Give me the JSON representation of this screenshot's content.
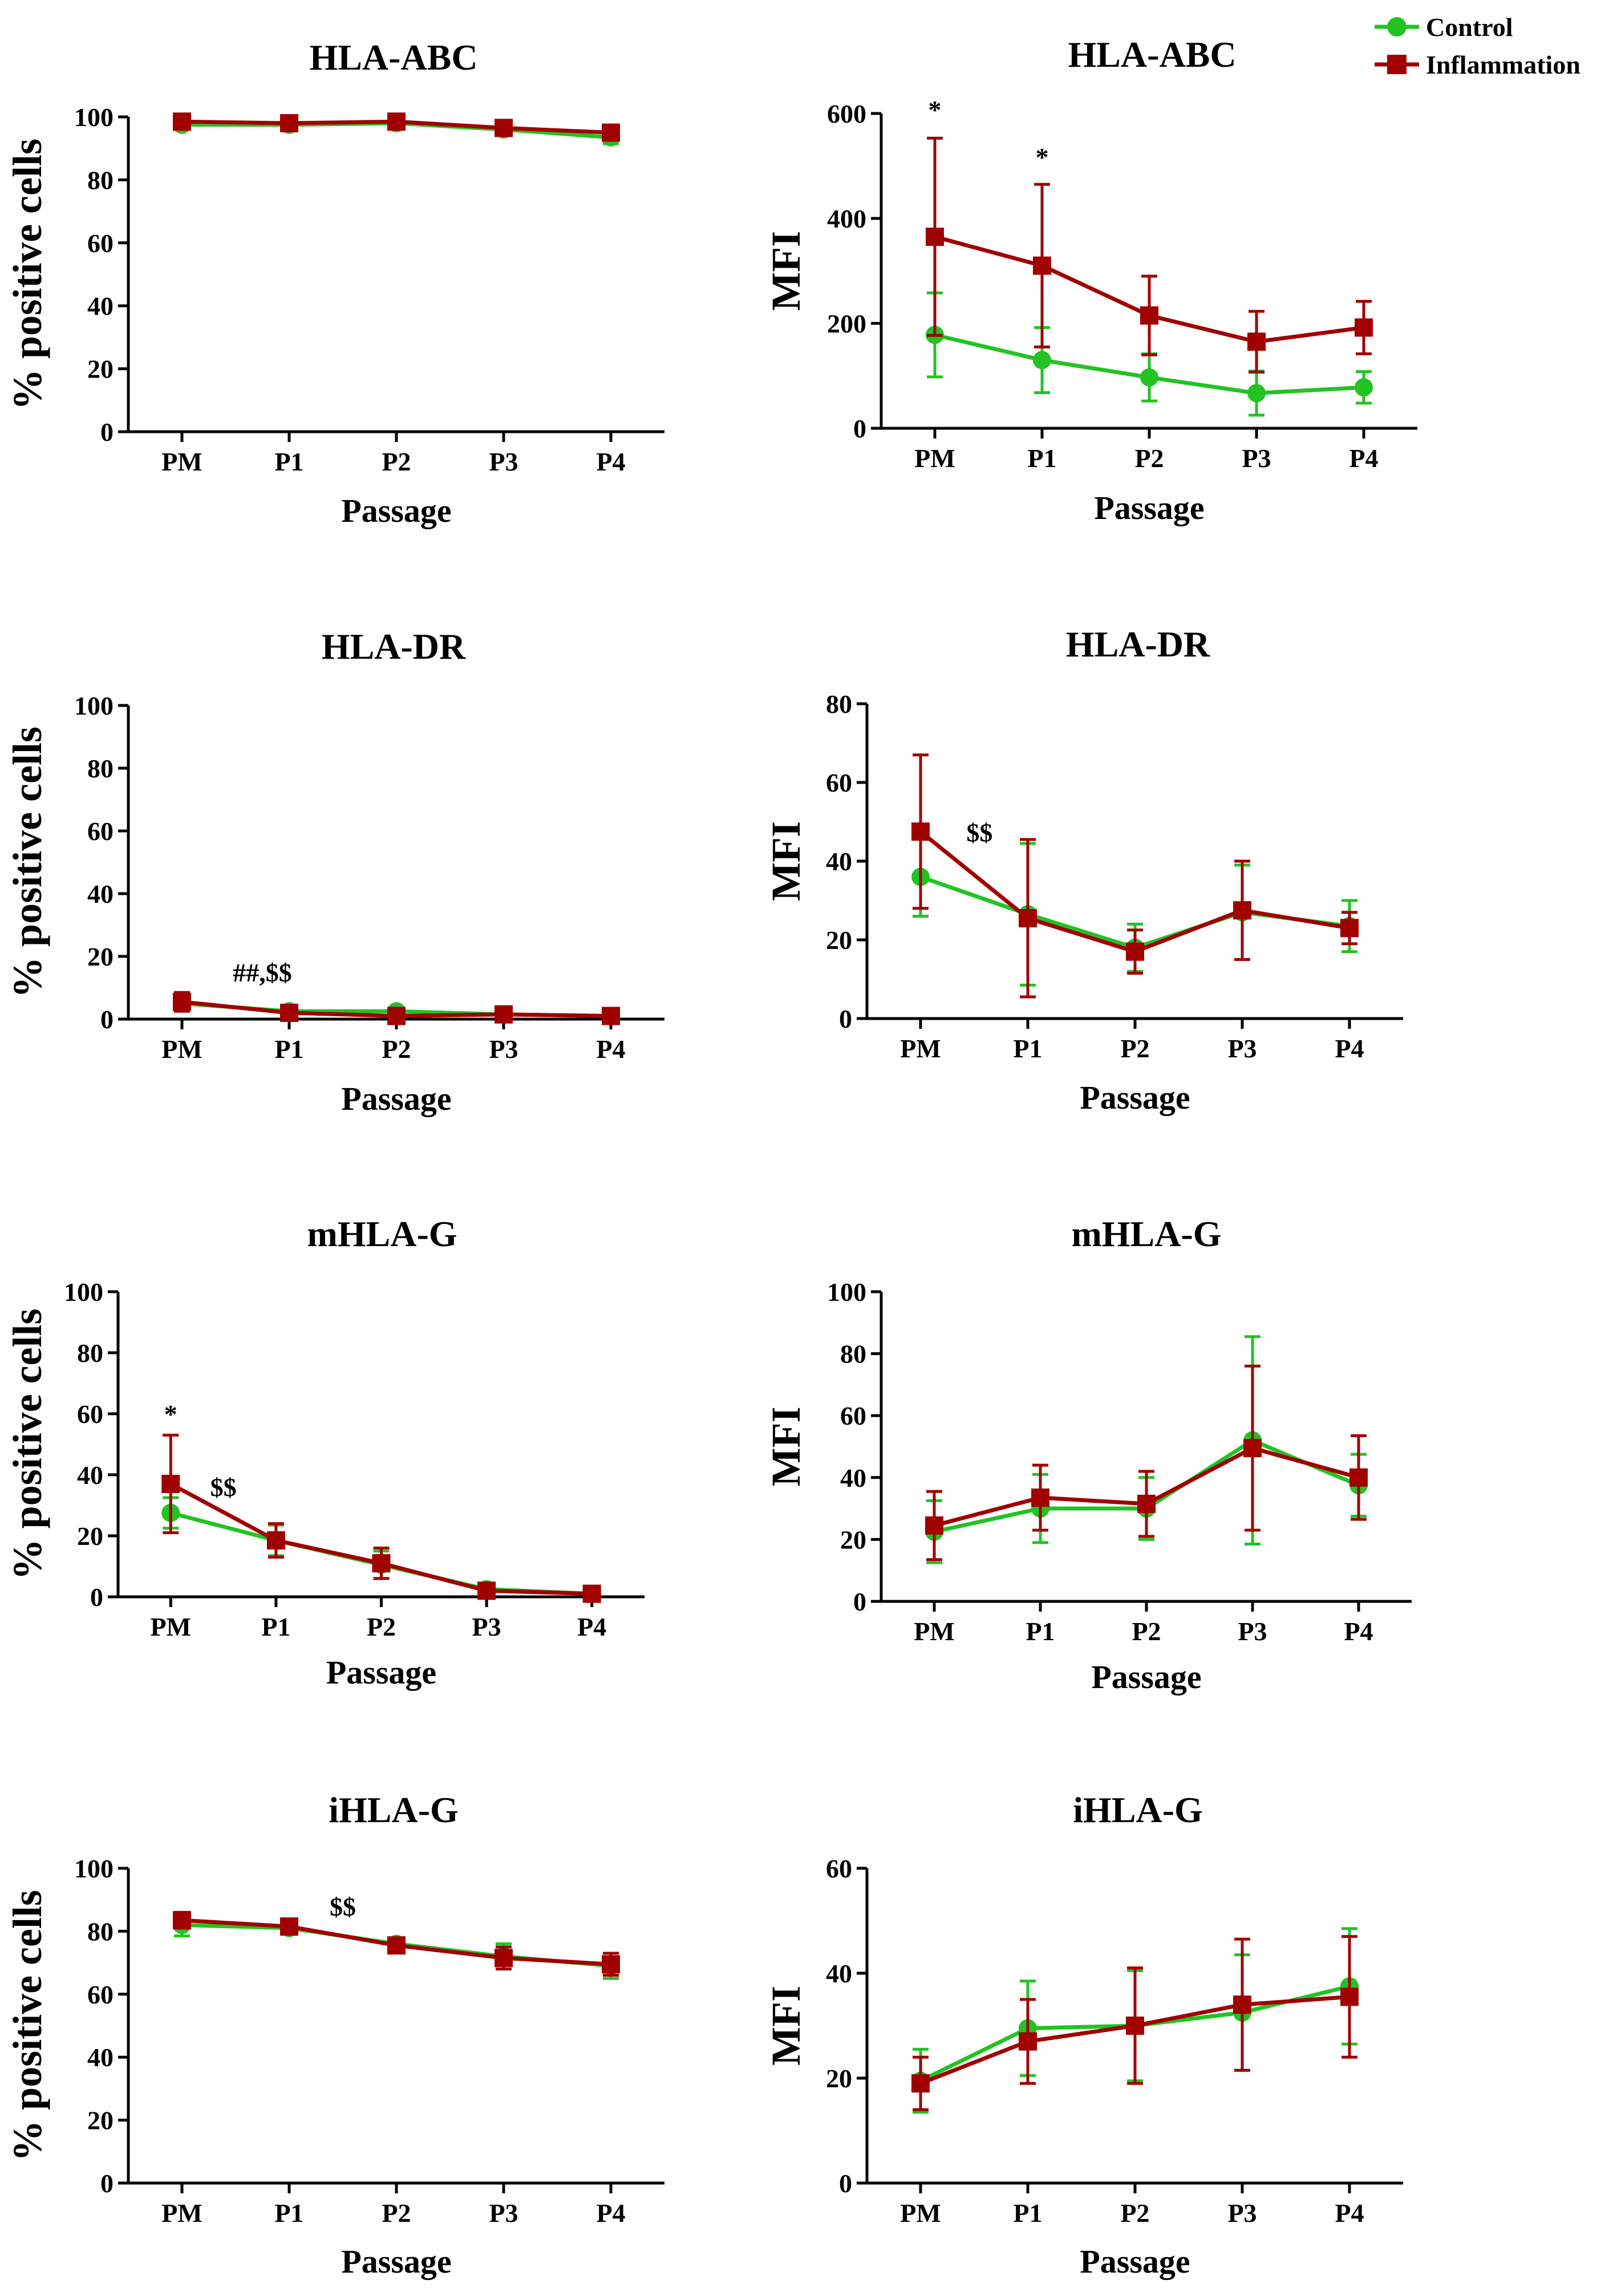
{
  "legend": {
    "entries": [
      {
        "label": "Control",
        "color": "#22c322",
        "marker": "circle"
      },
      {
        "label": "Inflammation",
        "color": "#a00000",
        "marker": "square"
      }
    ]
  },
  "chart_data": [
    {
      "id": "hla-abc-pct",
      "type": "line",
      "title": "HLA-ABC",
      "xlabel": "Passage",
      "ylabel": "% positive cells",
      "categories": [
        "PM",
        "P1",
        "P2",
        "P3",
        "P4"
      ],
      "ylim": [
        0,
        100
      ],
      "yticks": [
        "0",
        "20",
        "40",
        "60",
        "80",
        "100"
      ],
      "series": [
        {
          "name": "Control",
          "values": [
            97.5,
            97.5,
            98,
            96,
            93.5
          ],
          "errors": [
            1.5,
            1.5,
            1,
            1.5,
            2
          ]
        },
        {
          "name": "Inflammation",
          "values": [
            98.5,
            98,
            98.5,
            96.5,
            95
          ],
          "errors": [
            1,
            1,
            1,
            1,
            1.5
          ]
        }
      ],
      "annotations": []
    },
    {
      "id": "hla-abc-mfi",
      "type": "line",
      "title": "HLA-ABC",
      "xlabel": "Passage",
      "ylabel": "MFI",
      "categories": [
        "PM",
        "P1",
        "P2",
        "P3",
        "P4"
      ],
      "ylim": [
        0,
        600
      ],
      "yticks": [
        "0",
        "200",
        "400",
        "600"
      ],
      "series": [
        {
          "name": "Control",
          "values": [
            178,
            130,
            97,
            67,
            78
          ],
          "errors": [
            80,
            62,
            45,
            42,
            30
          ]
        },
        {
          "name": "Inflammation",
          "values": [
            365,
            310,
            215,
            165,
            192
          ],
          "errors": [
            188,
            155,
            75,
            58,
            50
          ]
        }
      ],
      "annotations": [
        {
          "text": "*",
          "x": 0,
          "y": 590
        },
        {
          "text": "*",
          "x": 1,
          "y": 500
        }
      ]
    },
    {
      "id": "hla-dr-pct",
      "type": "line",
      "title": "HLA-DR",
      "xlabel": "Passage",
      "ylabel": "% positive cells",
      "categories": [
        "PM",
        "P1",
        "P2",
        "P3",
        "P4"
      ],
      "ylim": [
        0,
        100
      ],
      "yticks": [
        "0",
        "20",
        "40",
        "60",
        "80",
        "100"
      ],
      "series": [
        {
          "name": "Control",
          "values": [
            5,
            2.5,
            2.5,
            1.5,
            1
          ],
          "errors": [
            2,
            1,
            1,
            0.5,
            0.5
          ]
        },
        {
          "name": "Inflammation",
          "values": [
            5.5,
            2,
            1,
            1.5,
            1
          ],
          "errors": [
            3,
            1,
            0.5,
            0.5,
            0.5
          ]
        }
      ],
      "annotations": [
        {
          "text": "##,$$",
          "x": 0.75,
          "y": 12
        }
      ]
    },
    {
      "id": "hla-dr-mfi",
      "type": "line",
      "title": "HLA-DR",
      "xlabel": "Passage",
      "ylabel": "MFI",
      "categories": [
        "PM",
        "P1",
        "P2",
        "P3",
        "P4"
      ],
      "ylim": [
        0,
        80
      ],
      "yticks": [
        "0",
        "20",
        "40",
        "60",
        "80"
      ],
      "series": [
        {
          "name": "Control",
          "values": [
            36,
            26.5,
            18,
            27,
            23.5
          ],
          "errors": [
            10,
            18,
            6,
            12,
            6.5
          ]
        },
        {
          "name": "Inflammation",
          "values": [
            47.5,
            25.5,
            17,
            27.5,
            23
          ],
          "errors": [
            19.5,
            20,
            5.5,
            12.5,
            4
          ]
        }
      ],
      "annotations": [
        {
          "text": "$$",
          "x": 0.55,
          "y": 45
        }
      ]
    },
    {
      "id": "mhla-g-pct",
      "type": "line",
      "title": "mHLA-G",
      "xlabel": "Passage",
      "ylabel": "% positive cells",
      "categories": [
        "PM",
        "P1",
        "P2",
        "P3",
        "P4"
      ],
      "ylim": [
        0,
        100
      ],
      "yticks": [
        "0",
        "20",
        "40",
        "60",
        "80",
        "100"
      ],
      "series": [
        {
          "name": "Control",
          "values": [
            27.5,
            18.5,
            10.5,
            2.5,
            1
          ],
          "errors": [
            5,
            5,
            4.5,
            1,
            0.5
          ]
        },
        {
          "name": "Inflammation",
          "values": [
            37,
            18.5,
            11,
            2,
            1
          ],
          "errors": [
            16,
            5.5,
            5,
            1,
            0.5
          ]
        }
      ],
      "annotations": [
        {
          "text": "*",
          "x": 0,
          "y": 57
        },
        {
          "text": "$$",
          "x": 0.5,
          "y": 33
        }
      ]
    },
    {
      "id": "mhla-g-mfi",
      "type": "line",
      "title": "mHLA-G",
      "xlabel": "Passage",
      "ylabel": "MFI",
      "categories": [
        "PM",
        "P1",
        "P2",
        "P3",
        "P4"
      ],
      "ylim": [
        0,
        100
      ],
      "yticks": [
        "0",
        "20",
        "40",
        "60",
        "80",
        "100"
      ],
      "series": [
        {
          "name": "Control",
          "values": [
            22.5,
            30,
            30,
            52,
            37.5
          ],
          "errors": [
            10,
            11,
            10,
            33.5,
            10
          ]
        },
        {
          "name": "Inflammation",
          "values": [
            24.5,
            33.5,
            31.5,
            49.5,
            40
          ],
          "errors": [
            11,
            10.5,
            10.5,
            26.5,
            13.5
          ]
        }
      ],
      "annotations": []
    },
    {
      "id": "ihla-g-pct",
      "type": "line",
      "title": "iHLA-G",
      "xlabel": "Passage",
      "ylabel": "% positive cells",
      "categories": [
        "PM",
        "P1",
        "P2",
        "P3",
        "P4"
      ],
      "ylim": [
        0,
        100
      ],
      "yticks": [
        "0",
        "20",
        "40",
        "60",
        "80",
        "100"
      ],
      "series": [
        {
          "name": "Control",
          "values": [
            82,
            81,
            76,
            72,
            69
          ],
          "errors": [
            3.5,
            2,
            1.5,
            4,
            4
          ]
        },
        {
          "name": "Inflammation",
          "values": [
            83.5,
            81.5,
            75.5,
            71.5,
            69.5
          ],
          "errors": [
            2.5,
            2,
            1.5,
            3.5,
            3.5
          ]
        }
      ],
      "annotations": [
        {
          "text": "$$",
          "x": 1.5,
          "y": 85
        }
      ]
    },
    {
      "id": "ihla-g-mfi",
      "type": "line",
      "title": "iHLA-G",
      "xlabel": "Passage",
      "ylabel": "MFI",
      "categories": [
        "PM",
        "P1",
        "P2",
        "P3",
        "P4"
      ],
      "ylim": [
        0,
        60
      ],
      "yticks": [
        "0",
        "20",
        "40",
        "60"
      ],
      "series": [
        {
          "name": "Control",
          "values": [
            19.5,
            29.5,
            30,
            32.5,
            37.5
          ],
          "errors": [
            6,
            9,
            10.5,
            11,
            11
          ]
        },
        {
          "name": "Inflammation",
          "values": [
            19,
            27,
            30,
            34,
            35.5
          ],
          "errors": [
            5,
            8,
            11,
            12.5,
            11.5
          ]
        }
      ],
      "annotations": []
    }
  ]
}
